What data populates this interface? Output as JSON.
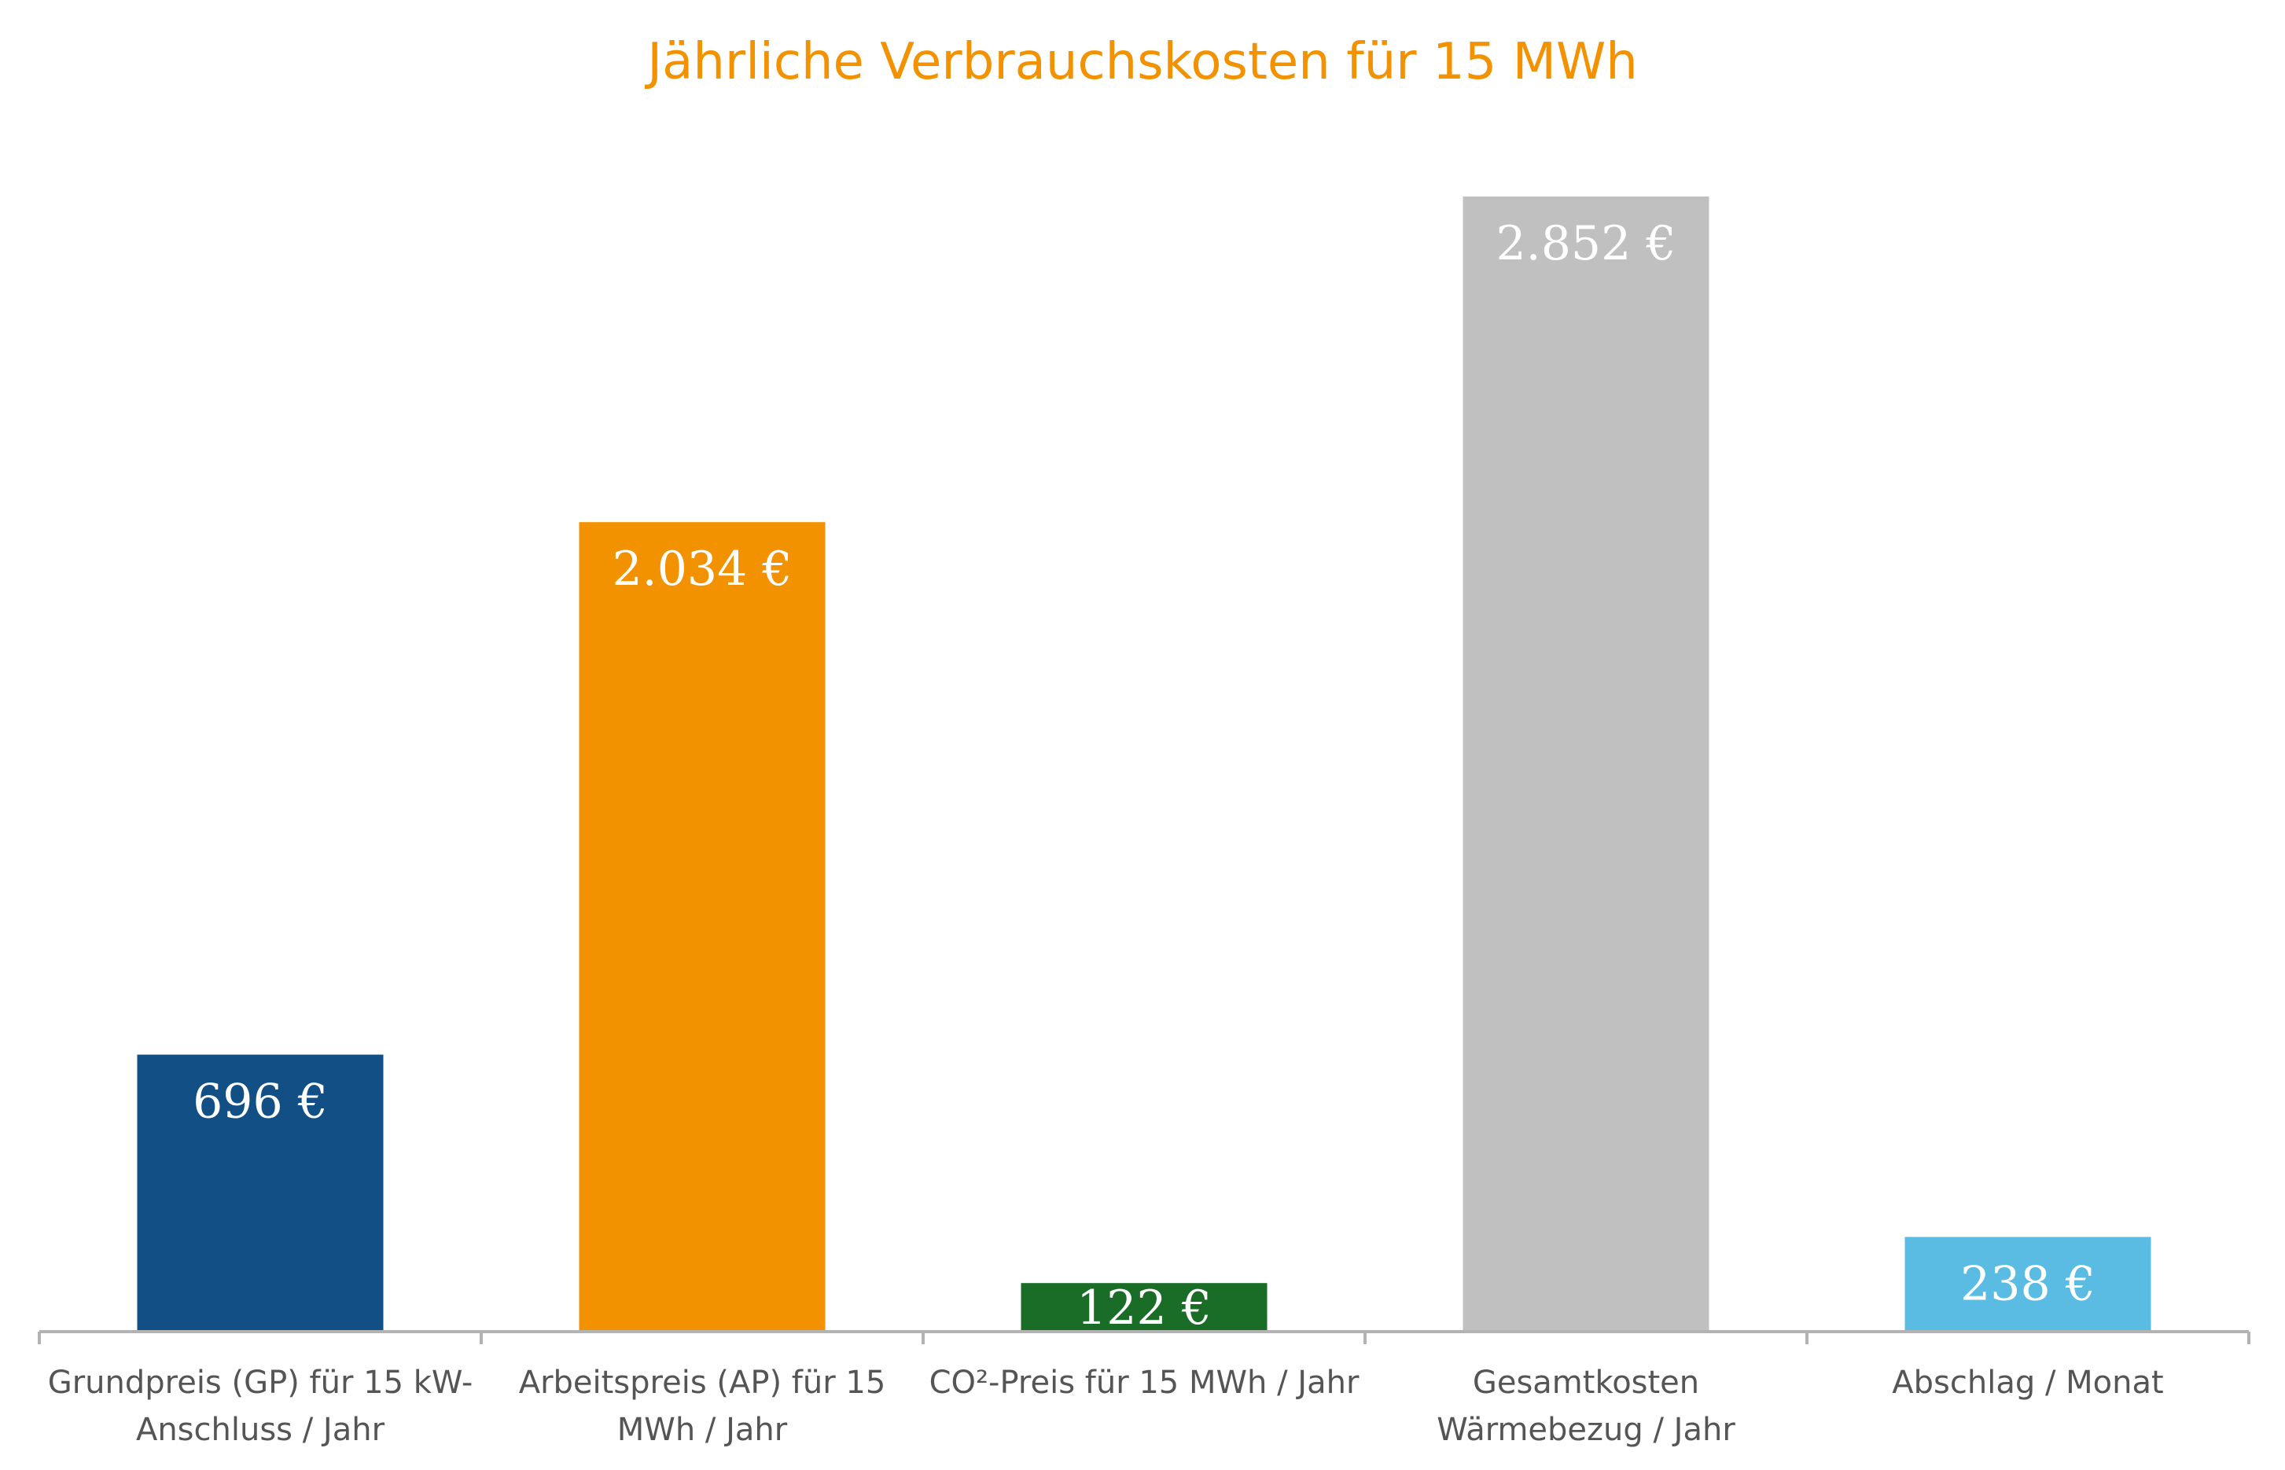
{
  "chart_data": {
    "type": "bar",
    "title": "Jährliche Verbrauchskosten für 15 MWh",
    "categories": [
      [
        "Grundpreis (GP) für 15 kW-",
        "Anschluss / Jahr"
      ],
      [
        "Arbeitspreis (AP) für 15",
        "MWh / Jahr"
      ],
      [
        "CO²-Preis für 15 MWh / Jahr"
      ],
      [
        "Gesamtkosten",
        "Wärmebezug / Jahr"
      ],
      [
        "Abschlag / Monat"
      ]
    ],
    "values": [
      696,
      2034,
      122,
      2852,
      238
    ],
    "value_labels": [
      "696 €",
      "2.034 €",
      "122 €",
      "2.852 €",
      "238 €"
    ],
    "colors": [
      "#124f84",
      "#f39200",
      "#1a6d26",
      "#c0c0c0",
      "#5bbce3"
    ],
    "xlabel": "",
    "ylabel": "",
    "ylim": [
      0,
      2852
    ],
    "grid": false,
    "legend": "none"
  },
  "colors": {
    "title": "#f39200",
    "axis": "#b3b3b3",
    "category_text": "#555555",
    "value_text": "#ffffff"
  }
}
